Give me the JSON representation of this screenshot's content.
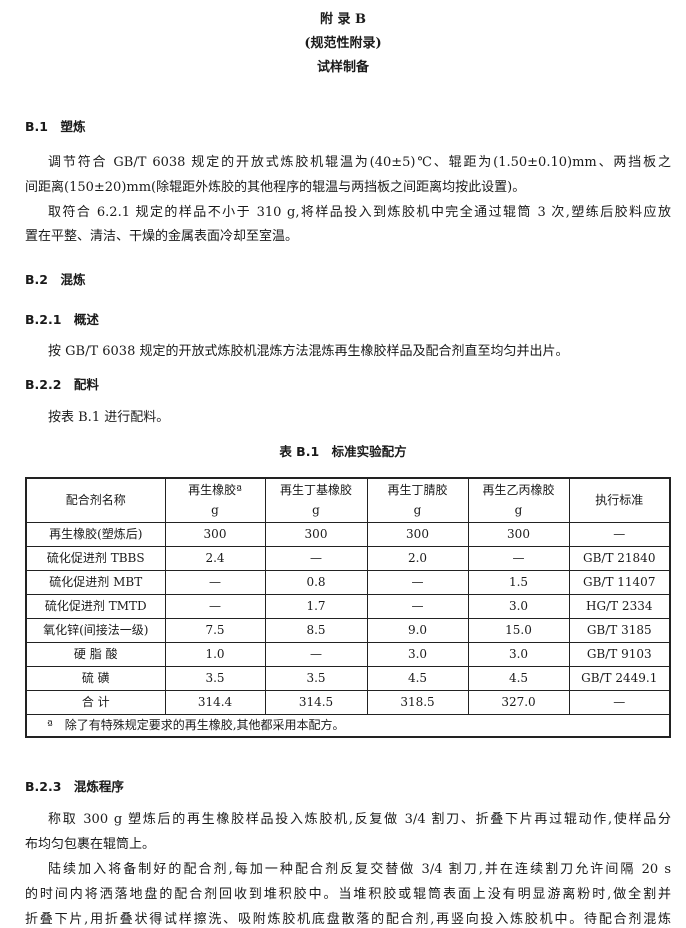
{
  "title": {
    "line1": "附 录 B",
    "line2": "(规范性附录)",
    "line3": "试样制备"
  },
  "b1": {
    "heading": "B.1　塑炼",
    "lines": [
      "调节符合 GB/T 6038 规定的开放式炼胶机辊温为(40±5)℃、辊距为(1.50±0.10)mm、两挡板之",
      "间距离(150±20)mm(除辊距外炼胶的其他程序的辊温与两挡板之间距离均按此设置)。",
      "取符合 6.2.1 规定的样品不小于 310 g,将样品投入到炼胶机中完全通过辊筒 3 次,塑练后胶料应放",
      "置在平整、清洁、干燥的金属表面冷却至室温。"
    ]
  },
  "b2": {
    "heading": "B.2　混炼"
  },
  "b21": {
    "heading": "B.2.1　概述",
    "text": "按 GB/T 6038 规定的开放式炼胶机混炼方法混炼再生橡胶样品及配合剂直至均匀并出片。"
  },
  "b22": {
    "heading": "B.2.2　配料",
    "text": "按表 B.1 进行配料。"
  },
  "table": {
    "caption": "表 B.1　标准实验配方",
    "headers": [
      {
        "name": "配合剂名称",
        "unit": ""
      },
      {
        "name": "再生橡胶ª",
        "unit": "g"
      },
      {
        "name": "再生丁基橡胶",
        "unit": "g"
      },
      {
        "name": "再生丁腈胶",
        "unit": "g"
      },
      {
        "name": "再生乙丙橡胶",
        "unit": "g"
      },
      {
        "name": "执行标准",
        "unit": ""
      }
    ],
    "rows": [
      [
        "再生橡胶(塑炼后)",
        "300",
        "300",
        "300",
        "300",
        "—"
      ],
      [
        "硫化促进剂 TBBS",
        "2.4",
        "—",
        "2.0",
        "—",
        "GB/T 21840"
      ],
      [
        "硫化促进剂 MBT",
        "—",
        "0.8",
        "—",
        "1.5",
        "GB/T 11407"
      ],
      [
        "硫化促进剂 TMTD",
        "—",
        "1.7",
        "—",
        "3.0",
        "HG/T 2334"
      ],
      [
        "氧化锌(间接法一级)",
        "7.5",
        "8.5",
        "9.0",
        "15.0",
        "GB/T 3185"
      ],
      [
        "硬 脂 酸",
        "1.0",
        "—",
        "3.0",
        "3.0",
        "GB/T 9103"
      ],
      [
        "硫 磺",
        "3.5",
        "3.5",
        "4.5",
        "4.5",
        "GB/T 2449.1"
      ],
      [
        "合 计",
        "314.4",
        "314.5",
        "318.5",
        "327.0",
        "—"
      ]
    ],
    "footnote": "ª　除了有特殊规定要求的再生橡胶,其他都采用本配方。"
  },
  "b23": {
    "heading": "B.2.3　混炼程序",
    "lines": [
      "称取 300 g 塑炼后的再生橡胶样品投入炼胶机,反复做 3/4 割刀、折叠下片再过辊动作,使样品分",
      "布均匀包裹在辊筒上。",
      "陆续加入将备制好的配合剂,每加一种配合剂反复交替做 3/4 割刀,并在连续割刀允许间隔 20 s",
      "的时间内将洒落地盘的配合剂回收到堆积胶中。当堆积胶或辊筒表面上没有明显游离粉时,做全割并",
      "折叠下片,用折叠状得试样擦洗、吸附炼胶机底盘散落的配合剂,再竖向投入炼胶机中。待配合剂混炼"
    ]
  }
}
